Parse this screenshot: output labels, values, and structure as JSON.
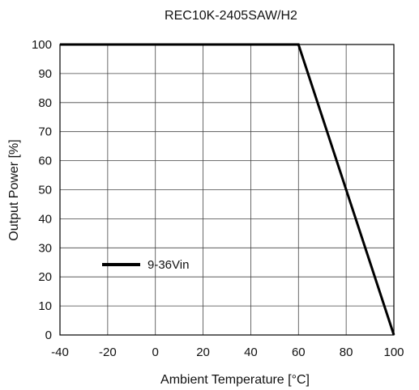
{
  "chart_data": {
    "type": "line",
    "title": "REC10K-2405SAW/H2",
    "xlabel": "Ambient Temperature [°C]",
    "ylabel": "Output Power [%]",
    "xlim": [
      -40,
      100
    ],
    "ylim": [
      0,
      100
    ],
    "x_ticks": [
      -40,
      -20,
      0,
      20,
      40,
      60,
      80,
      100
    ],
    "y_ticks": [
      0,
      10,
      20,
      30,
      40,
      50,
      60,
      70,
      80,
      90,
      100
    ],
    "grid": true,
    "legend_placement": "lower-left",
    "series": [
      {
        "name": "9-36Vin",
        "color": "#000000",
        "points": [
          {
            "x": -40,
            "y": 100
          },
          {
            "x": 60,
            "y": 100
          },
          {
            "x": 100,
            "y": 0
          }
        ]
      }
    ]
  }
}
